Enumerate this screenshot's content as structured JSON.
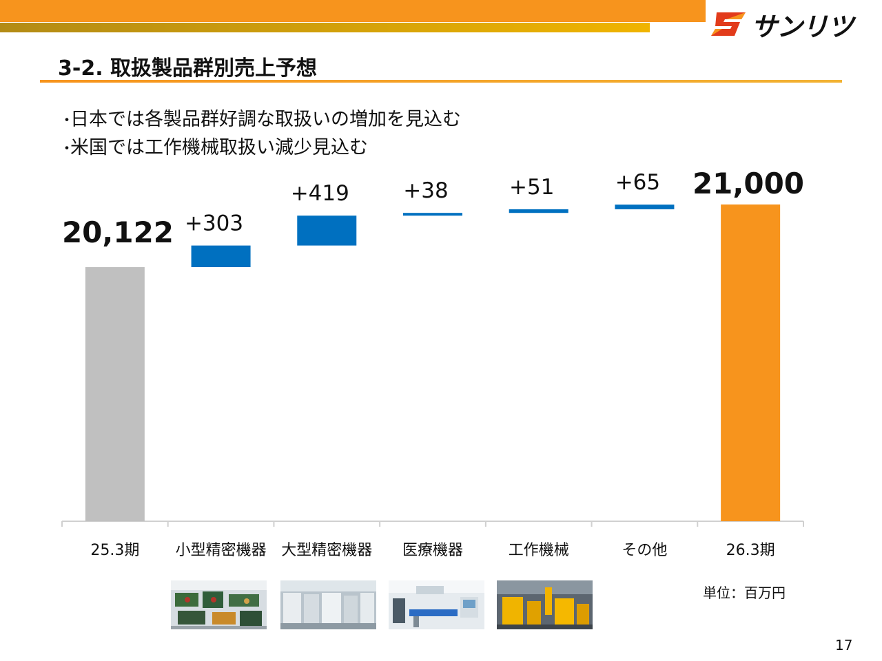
{
  "brand": {
    "name": "サンリツ",
    "colors": {
      "orange": "#f7941d",
      "gold": "#f0b400",
      "red": "#e23b1b"
    }
  },
  "slide": {
    "title": "3-2. 取扱製品群別売上予想",
    "bullets": [
      "日本では各製品群好調な取扱いの増加を見込む",
      "米国では工作機械取扱い減少見込む"
    ],
    "unit_label": "単位：百万円",
    "page_number": "17"
  },
  "chart_data": {
    "type": "bar",
    "subtype": "waterfall",
    "categories": [
      "25.3期",
      "小型精密機器",
      "大型精密機器",
      "医療機器",
      "工作機械",
      "その他",
      "26.3期"
    ],
    "values": [
      20122,
      303,
      419,
      38,
      51,
      65,
      21000
    ],
    "kinds": [
      "total",
      "delta",
      "delta",
      "delta",
      "delta",
      "delta",
      "total"
    ],
    "labels": [
      "20,122",
      "+303",
      "+419",
      "+38",
      "+51",
      "+65",
      "21,000"
    ],
    "colors": {
      "start": "#c0c0c0",
      "delta": "#0070c0",
      "end": "#f7941d"
    },
    "grid": false,
    "legend": "none"
  },
  "photos": [
    {
      "icon": "small-precision-equipment-photo"
    },
    {
      "icon": "large-precision-equipment-photo"
    },
    {
      "icon": "medical-equipment-photo"
    },
    {
      "icon": "machine-tool-photo"
    }
  ]
}
